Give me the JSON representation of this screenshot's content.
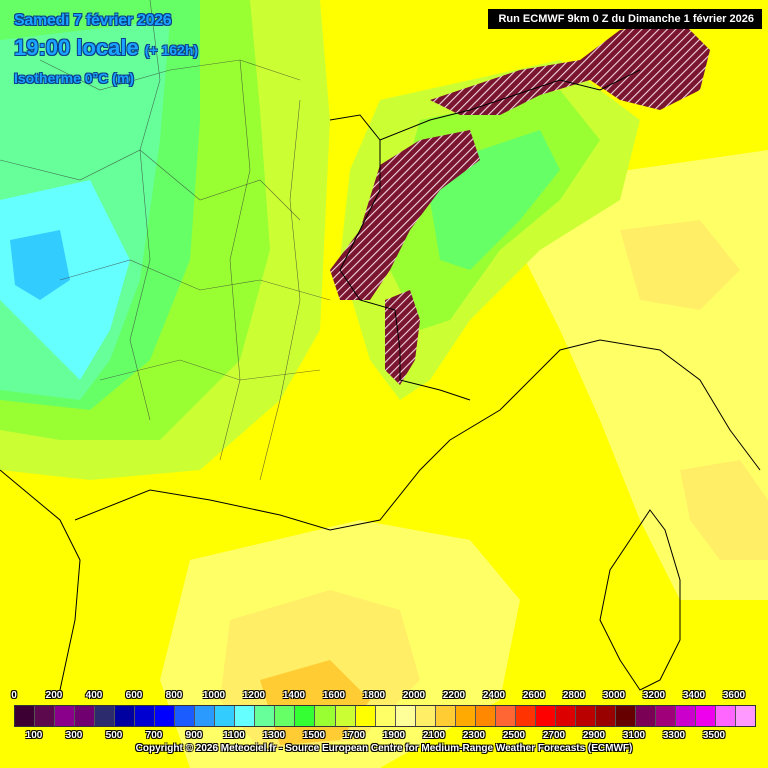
{
  "header": {
    "date": "Samedi 7 février 2026",
    "time": "19:00 locale",
    "offset": "(+ 162h)",
    "parameter": "Isotherme 0°C (m)"
  },
  "run_info": "Run ECMWF 9km 0 Z du Dimanche 1 février 2026",
  "legend": {
    "labels_top": [
      "0",
      "200",
      "400",
      "600",
      "800",
      "1000",
      "1200",
      "1400",
      "1600",
      "1800",
      "2000",
      "2200",
      "2400",
      "2600",
      "2800",
      "3000",
      "3200",
      "3400",
      "3600"
    ],
    "labels_bottom": [
      "100",
      "300",
      "500",
      "700",
      "900",
      "1100",
      "1300",
      "1500",
      "1700",
      "1900",
      "2100",
      "2300",
      "2500",
      "2700",
      "2900",
      "3100",
      "3300",
      "3500"
    ],
    "colors": [
      "#3d0033",
      "#5c0a4d",
      "#8a008a",
      "#700070",
      "#2b2b6e",
      "#0000a0",
      "#0000d0",
      "#0000ff",
      "#1a5cff",
      "#2a9aff",
      "#33ccff",
      "#66ffff",
      "#66ff99",
      "#66ff66",
      "#33ff33",
      "#99ff33",
      "#ccff33",
      "#ffff00",
      "#ffff66",
      "#ffff99",
      "#ffee66",
      "#ffcc33",
      "#ffaa00",
      "#ff8800",
      "#ff6633",
      "#ff3300",
      "#ff0000",
      "#dd0000",
      "#bb0000",
      "#990000",
      "#660000",
      "#7a0055",
      "#a0007a",
      "#cc00cc",
      "#ee00ee",
      "#ff66ff",
      "#ff99ff"
    ]
  },
  "copyright": "Copyright © 2026 Meteociel.fr - Source European Centre for Medium-Range Weather Forecasts (ECMWF)"
}
